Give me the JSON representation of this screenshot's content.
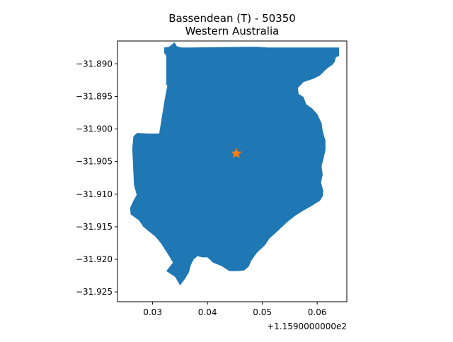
{
  "chart_data": {
    "type": "map",
    "title_line1": "Bassendean (T) - 50350",
    "title_line2": "Western Australia",
    "x_axis": {
      "ticks": [
        0.03,
        0.04,
        0.05,
        0.06
      ],
      "tick_labels": [
        "0.03",
        "0.04",
        "0.05",
        "0.06"
      ],
      "offset_label": "+1.1590000000e2",
      "range": [
        0.0236,
        0.0654
      ]
    },
    "y_axis": {
      "ticks": [
        -31.89,
        -31.895,
        -31.9,
        -31.905,
        -31.91,
        -31.915,
        -31.92,
        -31.925
      ],
      "tick_labels": [
        "−31.890",
        "−31.895",
        "−31.900",
        "−31.905",
        "−31.910",
        "−31.915",
        "−31.920",
        "−31.925"
      ],
      "range": [
        -31.9265,
        -31.8865
      ]
    },
    "polygon": {
      "fill_color": "#1f77b4",
      "points": [
        [
          0.0325,
          -31.8888
        ],
        [
          0.0321,
          -31.8883
        ],
        [
          0.0321,
          -31.8875
        ],
        [
          0.033,
          -31.8874
        ],
        [
          0.034,
          -31.8867
        ],
        [
          0.0344,
          -31.8873
        ],
        [
          0.0352,
          -31.8875
        ],
        [
          0.0367,
          -31.8875
        ],
        [
          0.047,
          -31.8874
        ],
        [
          0.049,
          -31.8874
        ],
        [
          0.051,
          -31.8875
        ],
        [
          0.055,
          -31.8875
        ],
        [
          0.056,
          -31.8875
        ],
        [
          0.064,
          -31.8875
        ],
        [
          0.064,
          -31.8888
        ],
        [
          0.0634,
          -31.889
        ],
        [
          0.0632,
          -31.8897
        ],
        [
          0.0627,
          -31.8902
        ],
        [
          0.062,
          -31.8906
        ],
        [
          0.0612,
          -31.8912
        ],
        [
          0.0605,
          -31.8918
        ],
        [
          0.0593,
          -31.8923
        ],
        [
          0.0575,
          -31.8928
        ],
        [
          0.0565,
          -31.8937
        ],
        [
          0.0566,
          -31.8946
        ],
        [
          0.0575,
          -31.8951
        ],
        [
          0.058,
          -31.8962
        ],
        [
          0.059,
          -31.8968
        ],
        [
          0.06,
          -31.8977
        ],
        [
          0.0608,
          -31.8991
        ],
        [
          0.061,
          -31.9003
        ],
        [
          0.0615,
          -31.9018
        ],
        [
          0.0615,
          -31.9032
        ],
        [
          0.0612,
          -31.9044
        ],
        [
          0.0608,
          -31.9057
        ],
        [
          0.061,
          -31.907
        ],
        [
          0.0607,
          -31.9082
        ],
        [
          0.0611,
          -31.9095
        ],
        [
          0.061,
          -31.9103
        ],
        [
          0.0605,
          -31.911
        ],
        [
          0.059,
          -31.9118
        ],
        [
          0.0575,
          -31.9125
        ],
        [
          0.056,
          -31.9133
        ],
        [
          0.0545,
          -31.9143
        ],
        [
          0.053,
          -31.9155
        ],
        [
          0.0513,
          -31.9168
        ],
        [
          0.0505,
          -31.9178
        ],
        [
          0.049,
          -31.919
        ],
        [
          0.048,
          -31.9202
        ],
        [
          0.0475,
          -31.9211
        ],
        [
          0.0467,
          -31.9217
        ],
        [
          0.0455,
          -31.9218
        ],
        [
          0.044,
          -31.9218
        ],
        [
          0.0425,
          -31.921
        ],
        [
          0.041,
          -31.9205
        ],
        [
          0.04,
          -31.9197
        ],
        [
          0.039,
          -31.9197
        ],
        [
          0.0382,
          -31.9195
        ],
        [
          0.0375,
          -31.92
        ],
        [
          0.037,
          -31.9208
        ],
        [
          0.0366,
          -31.922
        ],
        [
          0.0359,
          -31.923
        ],
        [
          0.035,
          -31.924
        ],
        [
          0.0341,
          -31.9227
        ],
        [
          0.0325,
          -31.9218
        ],
        [
          0.0337,
          -31.9205
        ],
        [
          0.033,
          -31.9195
        ],
        [
          0.0315,
          -31.9175
        ],
        [
          0.0305,
          -31.9165
        ],
        [
          0.029,
          -31.9155
        ],
        [
          0.0283,
          -31.915
        ],
        [
          0.0275,
          -31.914
        ],
        [
          0.026,
          -31.9131
        ],
        [
          0.0259,
          -31.9121
        ],
        [
          0.0265,
          -31.911
        ],
        [
          0.0271,
          -31.9101
        ],
        [
          0.0266,
          -31.9086
        ],
        [
          0.0265,
          -31.9068
        ],
        [
          0.0264,
          -31.9049
        ],
        [
          0.0263,
          -31.903
        ],
        [
          0.0265,
          -31.9011
        ],
        [
          0.0272,
          -31.9006
        ],
        [
          0.0291,
          -31.9007
        ],
        [
          0.0312,
          -31.9007
        ],
        [
          0.0317,
          -31.8981
        ],
        [
          0.0322,
          -31.8955
        ],
        [
          0.0327,
          -31.8933
        ],
        [
          0.0325,
          -31.8933
        ],
        [
          0.0325,
          -31.8888
        ]
      ]
    },
    "centroid_marker": {
      "x": 0.04525,
      "y": -31.90375,
      "symbol": "star",
      "color": "#ff7f0e"
    }
  }
}
